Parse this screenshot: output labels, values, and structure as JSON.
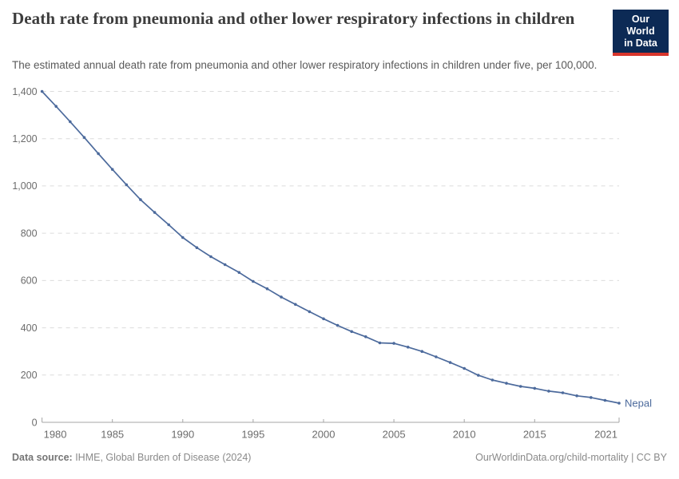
{
  "header": {
    "logo": {
      "line1": "Our World",
      "line2": "in Data",
      "bg_color": "#0c2a55",
      "accent_color": "#d8352c"
    }
  },
  "chart_data": {
    "type": "line",
    "title": "Death rate from pneumonia and other lower respiratory infections in children",
    "subtitle": "The estimated annual death rate from pneumonia and other lower respiratory infections in children under five, per 100,000.",
    "xlabel": "",
    "ylabel": "",
    "ylim": [
      0,
      1400
    ],
    "yticks": [
      0,
      200,
      400,
      600,
      800,
      1000,
      1200,
      1400
    ],
    "xticks": [
      1980,
      1985,
      1990,
      1995,
      2000,
      2005,
      2010,
      2015,
      2021
    ],
    "grid": true,
    "grid_style": "dashed",
    "grid_color": "#dcdcdc",
    "axis_color": "#a5a5a5",
    "legend_position": "end-of-line",
    "x": [
      1980,
      1981,
      1982,
      1983,
      1984,
      1985,
      1986,
      1987,
      1988,
      1989,
      1990,
      1991,
      1992,
      1993,
      1994,
      1995,
      1996,
      1997,
      1998,
      1999,
      2000,
      2001,
      2002,
      2003,
      2004,
      2005,
      2006,
      2007,
      2008,
      2009,
      2010,
      2011,
      2012,
      2013,
      2014,
      2015,
      2016,
      2017,
      2018,
      2019,
      2020,
      2021
    ],
    "series": [
      {
        "name": "Nepal",
        "color": "#4c6a9c",
        "values": [
          1400,
          1337,
          1272,
          1205,
          1137,
          1070,
          1005,
          942,
          888,
          836,
          782,
          739,
          701,
          667,
          634,
          596,
          565,
          530,
          499,
          468,
          438,
          410,
          384,
          362,
          336,
          334,
          318,
          300,
          277,
          253,
          228,
          199,
          179,
          165,
          152,
          144,
          132,
          125,
          112,
          105,
          93,
          81
        ]
      }
    ]
  },
  "footer": {
    "source_label": "Data source:",
    "source_text": " IHME, Global Burden of Disease (2024)",
    "credit": "OurWorldinData.org/child-mortality | CC BY"
  }
}
